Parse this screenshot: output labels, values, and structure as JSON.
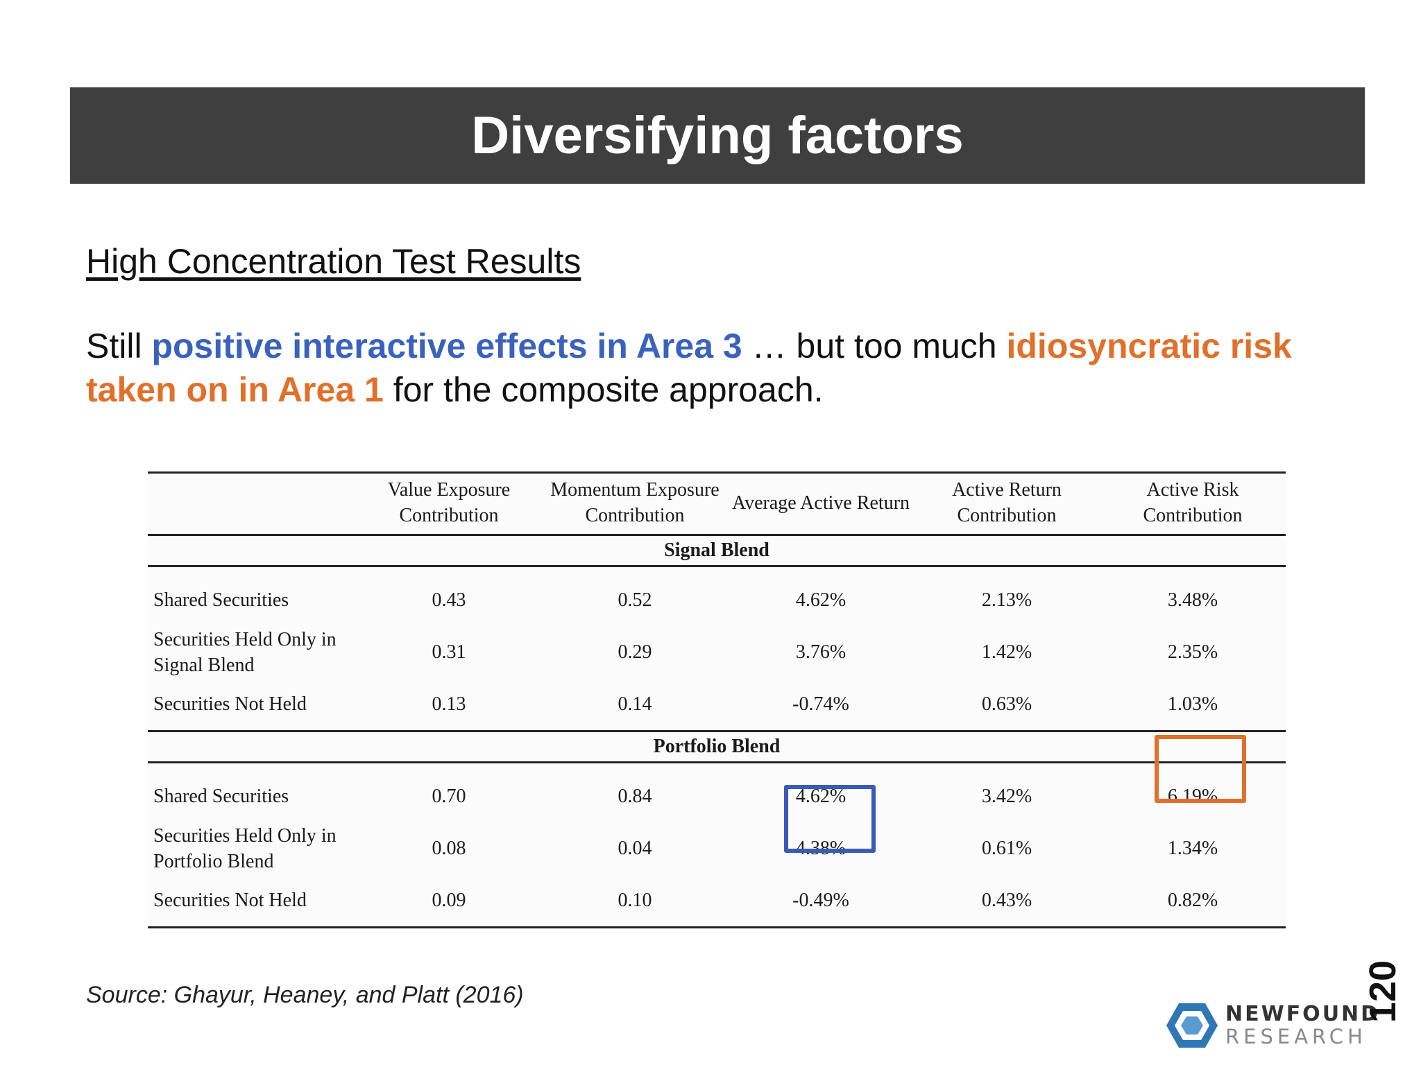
{
  "title": "Diversifying factors",
  "subtitle": "High Concentration Test Results",
  "lead": {
    "t1": "Still ",
    "blue": "positive interactive effects in Area 3",
    "t2": " … but too much ",
    "orange": "idiosyncratic risk taken on in Area 1",
    "t3": " for the composite approach."
  },
  "table": {
    "columns": [
      "",
      "Value Exposure Contribution",
      "Momentum Exposure Contribution",
      "Average Active Return",
      "Active Return Contribution",
      "Active Risk Contribution"
    ],
    "sections": [
      {
        "name": "Signal Blend",
        "rows": [
          {
            "label": "Shared Securities",
            "values": [
              "0.43",
              "0.52",
              "4.62%",
              "2.13%",
              "3.48%"
            ]
          },
          {
            "label": "Securities Held Only in Signal Blend",
            "values": [
              "0.31",
              "0.29",
              "3.76%",
              "1.42%",
              "2.35%"
            ]
          },
          {
            "label": "Securities Not Held",
            "values": [
              "0.13",
              "0.14",
              "-0.74%",
              "0.63%",
              "1.03%"
            ]
          }
        ]
      },
      {
        "name": "Portfolio Blend",
        "rows": [
          {
            "label": "Shared Securities",
            "values": [
              "0.70",
              "0.84",
              "4.62%",
              "3.42%",
              "6.19%"
            ]
          },
          {
            "label": "Securities Held Only in Portfolio Blend",
            "values": [
              "0.08",
              "0.04",
              "4.38%",
              "0.61%",
              "1.34%"
            ]
          },
          {
            "label": "Securities Not Held",
            "values": [
              "0.09",
              "0.10",
              "-0.49%",
              "0.43%",
              "0.82%"
            ]
          }
        ]
      }
    ]
  },
  "highlights": {
    "blue": "#3a5bb5",
    "orange": "#e0702a"
  },
  "source": "Source: Ghayur, Heaney, and Platt (2016)",
  "logo": {
    "line1": "NEWFOUND",
    "line2": "RESEARCH",
    "icon": "hexagon-logo-icon"
  },
  "page_number": "120"
}
